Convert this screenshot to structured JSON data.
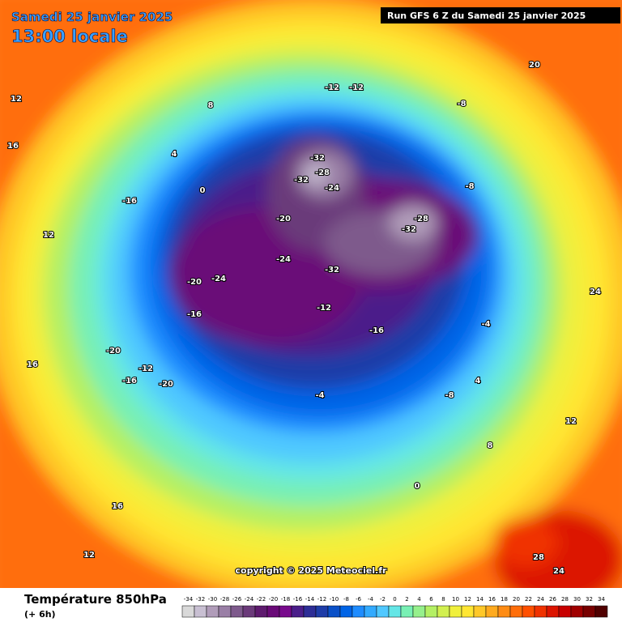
{
  "header": {
    "date": "Samedi 25 janvier 2025",
    "time": "13:00 locale",
    "run": "Run GFS 6 Z du Samedi 25 janvier 2025"
  },
  "copyright": "copyright © 2025 Meteociel.fr",
  "footer": {
    "title": "Température 850hPa",
    "step": "(+ 6h)"
  },
  "scale": [
    -34,
    -32,
    -30,
    -28,
    -26,
    -24,
    -22,
    -20,
    -18,
    -16,
    -14,
    -12,
    -10,
    -8,
    -6,
    -4,
    -2,
    0,
    2,
    4,
    6,
    8,
    10,
    12,
    14,
    16,
    18,
    20,
    22,
    24,
    26,
    28,
    30,
    32,
    34
  ],
  "scale_colors": [
    "#d9d9d9",
    "#c8bfd2",
    "#b09cb9",
    "#9a7fa6",
    "#7e5a8c",
    "#6b3a7a",
    "#5e1a6e",
    "#6a0a78",
    "#780a8c",
    "#4b1e8a",
    "#2d2d96",
    "#1e3ca8",
    "#0a50c8",
    "#0064e6",
    "#1e8cff",
    "#32aaff",
    "#50c8ff",
    "#64e6e6",
    "#78f0b4",
    "#96f08c",
    "#b4f064",
    "#d2f050",
    "#f0f03c",
    "#ffe632",
    "#ffc828",
    "#ffaa1e",
    "#ff8c14",
    "#ff6e0a",
    "#ff5000",
    "#f03200",
    "#dc1400",
    "#c80000",
    "#a00000",
    "#780000",
    "#500000"
  ],
  "contour_labels": [
    "-32",
    "-28",
    "-32",
    "-24",
    "-32",
    "-28",
    "-32",
    "-20",
    "-24",
    "-20",
    "-16",
    "-12",
    "-12",
    "-8",
    "-8",
    "-4",
    "-12",
    "0",
    "4",
    "8",
    "12",
    "12",
    "16",
    "16",
    "20",
    "24",
    "28",
    "24",
    "12",
    "8",
    "4",
    "0",
    "-20",
    "-16",
    "-12",
    "-16",
    "-20",
    "-24",
    "-16",
    "-8",
    "-4",
    "12",
    "16"
  ]
}
